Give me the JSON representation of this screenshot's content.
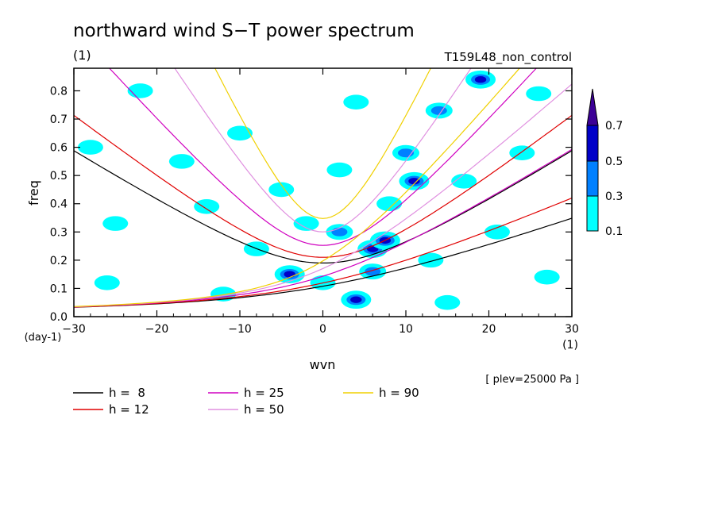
{
  "chart_data": {
    "type": "heatmap",
    "title": "northward wind S−T power spectrum",
    "unit_label": "(1)",
    "run_label": "T159L48_non_control",
    "xlabel": "wvn",
    "ylabel": "freq",
    "x_unit": "(1)",
    "y_unit": "(day-1)",
    "level_note": "[ plev=25000 Pa ]",
    "xlim": [
      -30,
      30
    ],
    "ylim": [
      0,
      0.88
    ],
    "xticks": [
      "−30",
      "−20",
      "−10",
      "0",
      "10",
      "20",
      "30"
    ],
    "xtick_values": [
      -30,
      -20,
      -10,
      0,
      10,
      20,
      30
    ],
    "yticks": [
      "0.0",
      "0.1",
      "0.2",
      "0.3",
      "0.4",
      "0.5",
      "0.6",
      "0.7",
      "0.8"
    ],
    "ytick_values": [
      0,
      0.1,
      0.2,
      0.3,
      0.4,
      0.5,
      0.6,
      0.7,
      0.8
    ],
    "colorbar": {
      "levels": [
        "0.1",
        "0.3",
        "0.5",
        "0.7"
      ],
      "colors": [
        "#00ffff",
        "#0080ff",
        "#0000c8",
        "#3c0096"
      ]
    },
    "blobs": [
      {
        "x": 6,
        "y": 0.24,
        "v": 0.5
      },
      {
        "x": 7.5,
        "y": 0.27,
        "v": 0.5
      },
      {
        "x": 4,
        "y": 0.06,
        "v": 0.5
      },
      {
        "x": -4,
        "y": 0.15,
        "v": 0.5
      },
      {
        "x": 11,
        "y": 0.48,
        "v": 0.5
      },
      {
        "x": 19,
        "y": 0.84,
        "v": 0.5
      },
      {
        "x": 10,
        "y": 0.58,
        "v": 0.3
      },
      {
        "x": 14,
        "y": 0.73,
        "v": 0.3
      },
      {
        "x": 6,
        "y": 0.16,
        "v": 0.3
      },
      {
        "x": 2,
        "y": 0.3,
        "v": 0.3
      },
      {
        "x": -25,
        "y": 0.33,
        "v": 0.1
      },
      {
        "x": -26,
        "y": 0.12,
        "v": 0.1
      },
      {
        "x": -22,
        "y": 0.8,
        "v": 0.1
      },
      {
        "x": -17,
        "y": 0.55,
        "v": 0.1
      },
      {
        "x": -14,
        "y": 0.39,
        "v": 0.1
      },
      {
        "x": -10,
        "y": 0.65,
        "v": 0.1
      },
      {
        "x": -8,
        "y": 0.24,
        "v": 0.1
      },
      {
        "x": -5,
        "y": 0.45,
        "v": 0.1
      },
      {
        "x": -2,
        "y": 0.33,
        "v": 0.1
      },
      {
        "x": 0,
        "y": 0.12,
        "v": 0.1
      },
      {
        "x": 2,
        "y": 0.52,
        "v": 0.1
      },
      {
        "x": 4,
        "y": 0.76,
        "v": 0.1
      },
      {
        "x": 8,
        "y": 0.4,
        "v": 0.1
      },
      {
        "x": 13,
        "y": 0.2,
        "v": 0.1
      },
      {
        "x": 17,
        "y": 0.48,
        "v": 0.1
      },
      {
        "x": 21,
        "y": 0.3,
        "v": 0.1
      },
      {
        "x": 24,
        "y": 0.58,
        "v": 0.1
      },
      {
        "x": 27,
        "y": 0.14,
        "v": 0.1
      },
      {
        "x": -28,
        "y": 0.6,
        "v": 0.1
      },
      {
        "x": -12,
        "y": 0.08,
        "v": 0.1
      },
      {
        "x": 26,
        "y": 0.79,
        "v": 0.1
      },
      {
        "x": 15,
        "y": 0.05,
        "v": 0.1
      }
    ],
    "series": [
      {
        "name": "h =  8",
        "h": 8,
        "color": "#000000"
      },
      {
        "name": "h = 12",
        "h": 12,
        "color": "#e00000"
      },
      {
        "name": "h = 25",
        "h": 25,
        "color": "#d000c0"
      },
      {
        "name": "h = 50",
        "h": 50,
        "color": "#e090e0"
      },
      {
        "name": "h = 90",
        "h": 90,
        "color": "#f0d000"
      }
    ]
  }
}
